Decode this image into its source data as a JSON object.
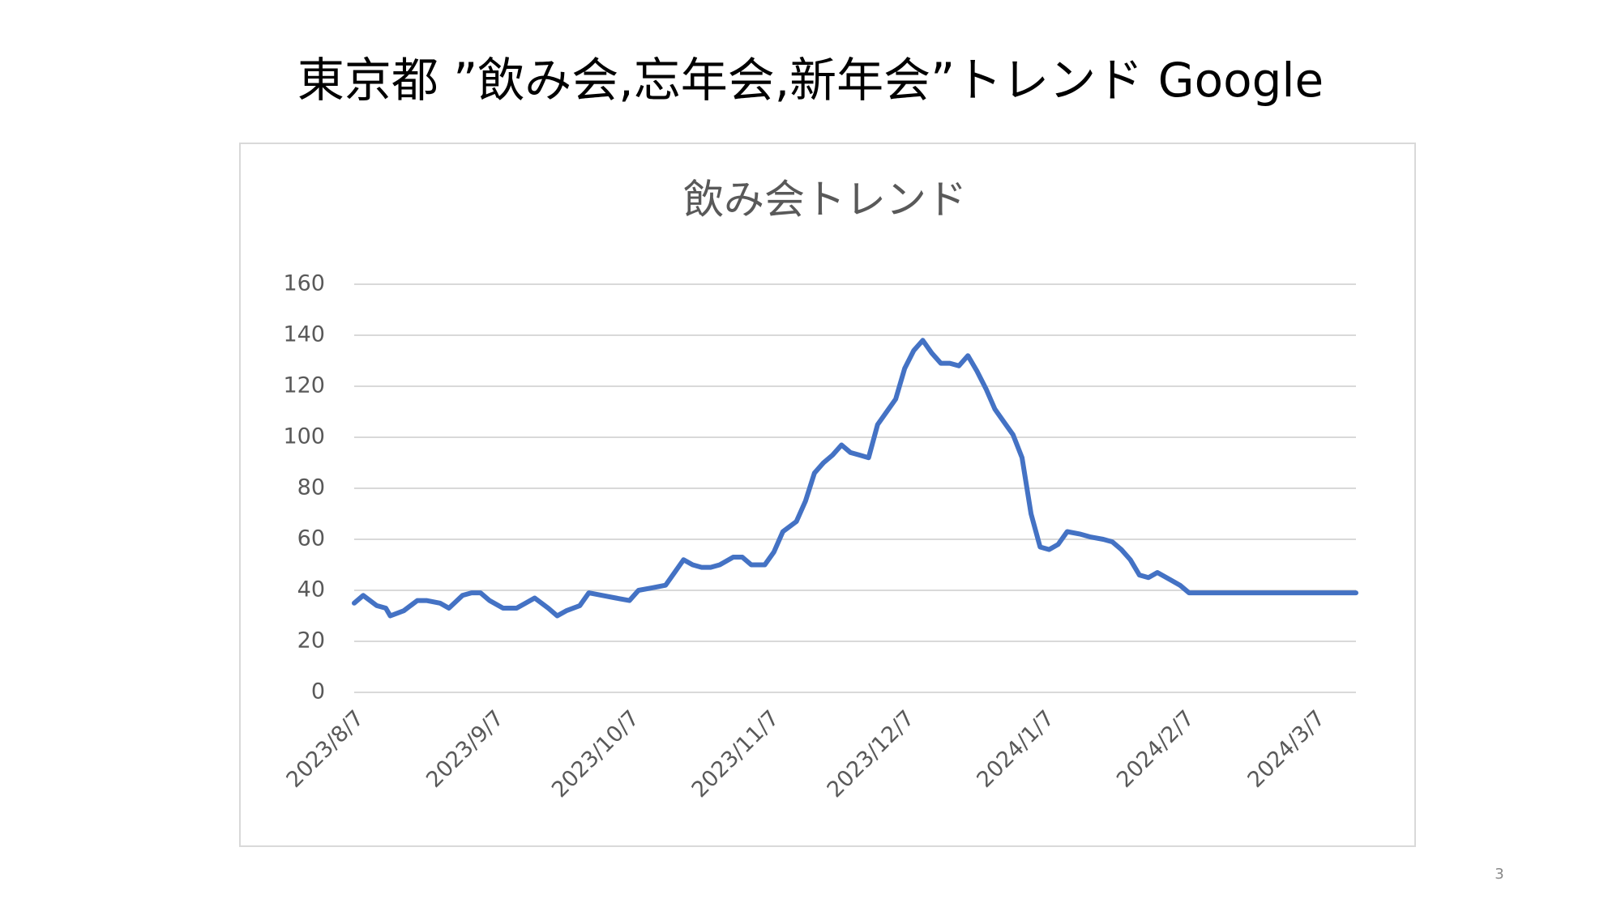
{
  "page_title": "東京都 ”飲み会,忘年会,新年会”トレンド Google",
  "page_number": "3",
  "chart_data": {
    "type": "line",
    "title": "飲み会トレンド",
    "x": [
      "2023/8/7",
      "2023/8/9",
      "2023/8/12",
      "2023/8/14",
      "2023/8/15",
      "2023/8/18",
      "2023/8/21",
      "2023/8/23",
      "2023/8/26",
      "2023/8/28",
      "2023/8/31",
      "2023/9/2",
      "2023/9/4",
      "2023/9/6",
      "2023/9/9",
      "2023/9/12",
      "2023/9/14",
      "2023/9/16",
      "2023/9/19",
      "2023/9/21",
      "2023/9/23",
      "2023/9/26",
      "2023/9/28",
      "2023/10/1",
      "2023/10/4",
      "2023/10/7",
      "2023/10/9",
      "2023/10/12",
      "2023/10/15",
      "2023/10/17",
      "2023/10/19",
      "2023/10/21",
      "2023/10/23",
      "2023/10/25",
      "2023/10/27",
      "2023/10/30",
      "2023/11/1",
      "2023/11/3",
      "2023/11/6",
      "2023/11/8",
      "2023/11/10",
      "2023/11/13",
      "2023/11/15",
      "2023/11/17",
      "2023/11/19",
      "2023/11/21",
      "2023/11/23",
      "2023/11/25",
      "2023/11/27",
      "2023/11/29",
      "2023/12/1",
      "2023/12/3",
      "2023/12/5",
      "2023/12/7",
      "2023/12/9",
      "2023/12/11",
      "2023/12/13",
      "2023/12/15",
      "2023/12/17",
      "2023/12/19",
      "2023/12/21",
      "2023/12/23",
      "2023/12/25",
      "2023/12/27",
      "2023/12/29",
      "2023/12/31",
      "2024/1/2",
      "2024/1/4",
      "2024/1/6",
      "2024/1/8",
      "2024/1/10",
      "2024/1/12",
      "2024/1/15",
      "2024/1/17",
      "2024/1/20",
      "2024/1/22",
      "2024/1/24",
      "2024/1/26",
      "2024/1/28",
      "2024/1/30",
      "2024/2/1",
      "2024/2/4",
      "2024/2/6",
      "2024/2/8",
      "2024/2/13",
      "2024/2/23",
      "2024/3/4",
      "2024/3/16"
    ],
    "series": [
      {
        "name": "飲み会",
        "color": "#4472c4",
        "values": [
          35,
          38,
          34,
          33,
          30,
          32,
          36,
          36,
          35,
          33,
          38,
          39,
          39,
          36,
          33,
          33,
          35,
          37,
          33,
          30,
          32,
          34,
          39,
          38,
          37,
          36,
          40,
          41,
          42,
          47,
          52,
          50,
          49,
          49,
          50,
          53,
          53,
          50,
          50,
          55,
          63,
          67,
          75,
          86,
          90,
          93,
          97,
          94,
          93,
          92,
          105,
          110,
          115,
          127,
          134,
          138,
          133,
          129,
          129,
          128,
          132,
          126,
          119,
          111,
          106,
          101,
          92,
          70,
          57,
          56,
          58,
          63,
          62,
          61,
          60,
          59,
          56,
          52,
          46,
          45,
          47,
          44,
          42,
          39,
          39,
          39,
          39,
          39
        ]
      }
    ],
    "xlim": [
      "2023/8/7",
      "2024/3/16"
    ],
    "xticks": [
      "2023/8/7",
      "2023/9/7",
      "2023/10/7",
      "2023/11/7",
      "2023/12/7",
      "2024/1/7",
      "2024/2/7",
      "2024/3/7"
    ],
    "ylim": [
      0,
      160
    ],
    "yticks": [
      0,
      20,
      40,
      60,
      80,
      100,
      120,
      140,
      160
    ],
    "grid": true
  }
}
